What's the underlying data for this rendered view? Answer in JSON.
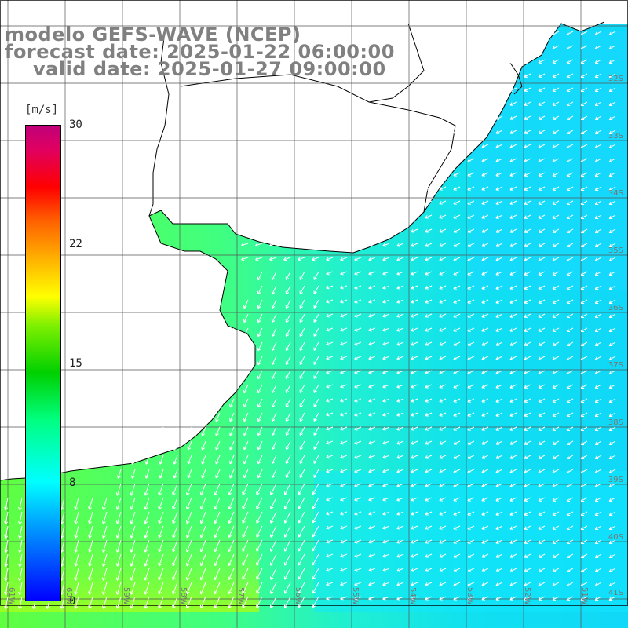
{
  "title": {
    "line1": "modelo GEFS-WAVE (NCEP)",
    "line2": "forecast date: 2025-01-22 06:00:00",
    "line3": "valid date: 2025-01-27 09:00:00"
  },
  "legend": {
    "unit": "[m/s]",
    "ticks": [
      {
        "label": "30",
        "value": 30
      },
      {
        "label": "22",
        "value": 22
      },
      {
        "label": "15",
        "value": 15
      },
      {
        "label": "8",
        "value": 8
      },
      {
        "label": "0",
        "value": 0
      }
    ],
    "colors": [
      "#0000ff",
      "#00a0ff",
      "#00ffff",
      "#00ff80",
      "#00d000",
      "#80f000",
      "#ffff00",
      "#ffb000",
      "#ff6000",
      "#ff0000",
      "#c0007a"
    ]
  },
  "lat_labels": [
    "32S",
    "33S",
    "34S",
    "35S",
    "36S",
    "37S",
    "38S",
    "39S",
    "40S",
    "41S"
  ],
  "lon_labels": [
    "61W",
    "60W",
    "59W",
    "58W",
    "57W",
    "56W",
    "55W",
    "54W",
    "53W",
    "52W",
    "51W"
  ],
  "colors": {
    "land": "#ffffff",
    "coast": "#000000",
    "grid": "#555555",
    "arrow": "#ffffff"
  }
}
